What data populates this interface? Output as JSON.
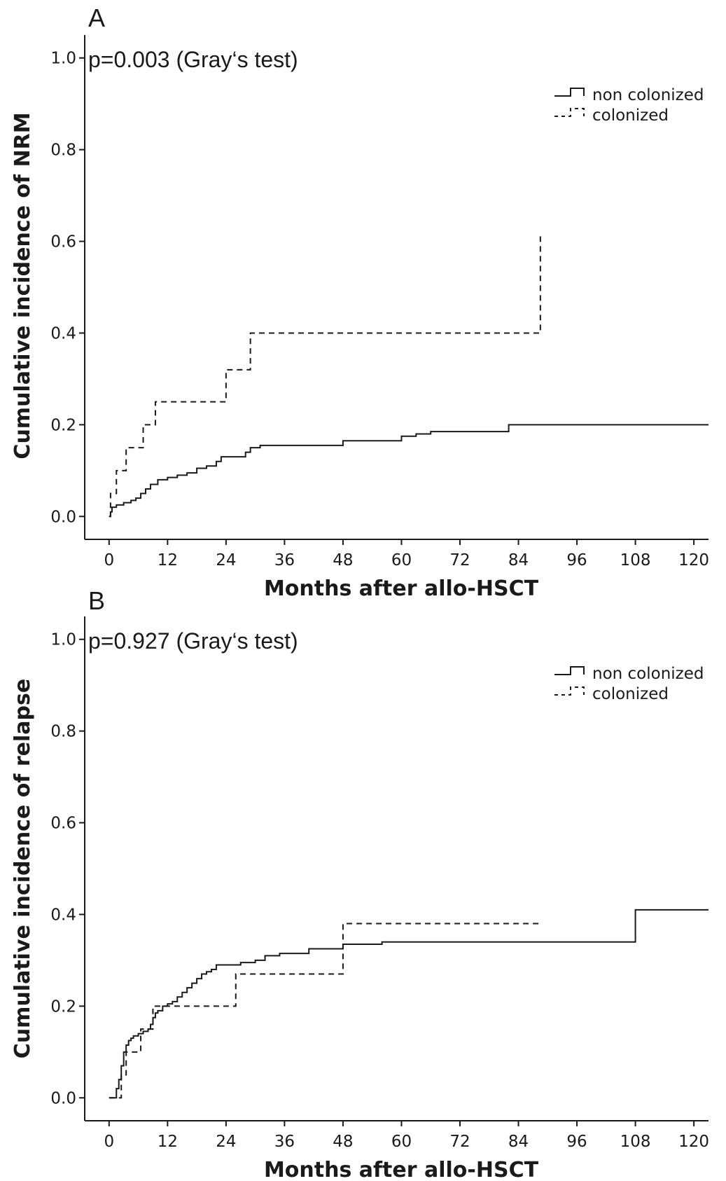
{
  "chart_data": [
    {
      "type": "line",
      "step": true,
      "panel_label": "A",
      "annotation": "p=0.003 (Gray‘s test)",
      "xlabel": "Months after allo-HSCT",
      "ylabel": "Cumulative incidence of NRM",
      "xlim": [
        -5,
        123
      ],
      "ylim": [
        -0.05,
        1.05
      ],
      "xticks": [
        0,
        12,
        24,
        36,
        48,
        60,
        72,
        84,
        96,
        108,
        120
      ],
      "yticks": [
        "0.0",
        "0.2",
        "0.4",
        "0.6",
        "0.8",
        "1.0"
      ],
      "grid": false,
      "legend_position": "top-right",
      "series": [
        {
          "name": "non colonized",
          "style": "solid",
          "points": [
            [
              0,
              0.0
            ],
            [
              0.3,
              0.01
            ],
            [
              0.6,
              0.02
            ],
            [
              1.5,
              0.025
            ],
            [
              3,
              0.03
            ],
            [
              4.5,
              0.035
            ],
            [
              5.5,
              0.04
            ],
            [
              6.5,
              0.05
            ],
            [
              7.5,
              0.06
            ],
            [
              8.5,
              0.07
            ],
            [
              10,
              0.08
            ],
            [
              12,
              0.085
            ],
            [
              14,
              0.09
            ],
            [
              16,
              0.095
            ],
            [
              18,
              0.105
            ],
            [
              20,
              0.11
            ],
            [
              22,
              0.12
            ],
            [
              23,
              0.13
            ],
            [
              28,
              0.14
            ],
            [
              29,
              0.15
            ],
            [
              31,
              0.155
            ],
            [
              48,
              0.165
            ],
            [
              60,
              0.175
            ],
            [
              63,
              0.18
            ],
            [
              66,
              0.185
            ],
            [
              82,
              0.2
            ],
            [
              123,
              0.2
            ]
          ]
        },
        {
          "name": "colonized",
          "style": "dashed",
          "points": [
            [
              0,
              0.0
            ],
            [
              0.3,
              0.05
            ],
            [
              1.5,
              0.1
            ],
            [
              3.5,
              0.15
            ],
            [
              7,
              0.2
            ],
            [
              9.5,
              0.25
            ],
            [
              24,
              0.32
            ],
            [
              29,
              0.4
            ],
            [
              88.5,
              0.62
            ]
          ]
        }
      ]
    },
    {
      "type": "line",
      "step": true,
      "panel_label": "B",
      "annotation": "p=0.927 (Gray‘s test)",
      "xlabel": "Months after allo-HSCT",
      "ylabel": "Cumulative incidence of relapse",
      "xlim": [
        -5,
        123
      ],
      "ylim": [
        -0.05,
        1.05
      ],
      "xticks": [
        0,
        12,
        24,
        36,
        48,
        60,
        72,
        84,
        96,
        108,
        120
      ],
      "yticks": [
        "0.0",
        "0.2",
        "0.4",
        "0.6",
        "0.8",
        "1.0"
      ],
      "grid": false,
      "legend_position": "top-right",
      "series": [
        {
          "name": "non colonized",
          "style": "solid",
          "points": [
            [
              0,
              0.0
            ],
            [
              1.5,
              0.02
            ],
            [
              2,
              0.04
            ],
            [
              2.5,
              0.07
            ],
            [
              3,
              0.1
            ],
            [
              3.5,
              0.115
            ],
            [
              4,
              0.125
            ],
            [
              4.5,
              0.13
            ],
            [
              5,
              0.135
            ],
            [
              6,
              0.14
            ],
            [
              7,
              0.145
            ],
            [
              8,
              0.15
            ],
            [
              8.5,
              0.16
            ],
            [
              9,
              0.175
            ],
            [
              9.5,
              0.185
            ],
            [
              10,
              0.19
            ],
            [
              11,
              0.2
            ],
            [
              12,
              0.205
            ],
            [
              13,
              0.21
            ],
            [
              14,
              0.22
            ],
            [
              15,
              0.23
            ],
            [
              16,
              0.24
            ],
            [
              17,
              0.25
            ],
            [
              18,
              0.26
            ],
            [
              19,
              0.27
            ],
            [
              20,
              0.275
            ],
            [
              21,
              0.28
            ],
            [
              22,
              0.29
            ],
            [
              27,
              0.295
            ],
            [
              30,
              0.3
            ],
            [
              32,
              0.31
            ],
            [
              35,
              0.315
            ],
            [
              41,
              0.325
            ],
            [
              48,
              0.335
            ],
            [
              56,
              0.34
            ],
            [
              108,
              0.41
            ],
            [
              123,
              0.41
            ]
          ]
        },
        {
          "name": "colonized",
          "style": "dashed",
          "points": [
            [
              0,
              0.0
            ],
            [
              2.5,
              0.05
            ],
            [
              3.5,
              0.1
            ],
            [
              6.5,
              0.15
            ],
            [
              9,
              0.2
            ],
            [
              26,
              0.27
            ],
            [
              48,
              0.38
            ],
            [
              88.5,
              0.38
            ]
          ]
        }
      ]
    }
  ]
}
